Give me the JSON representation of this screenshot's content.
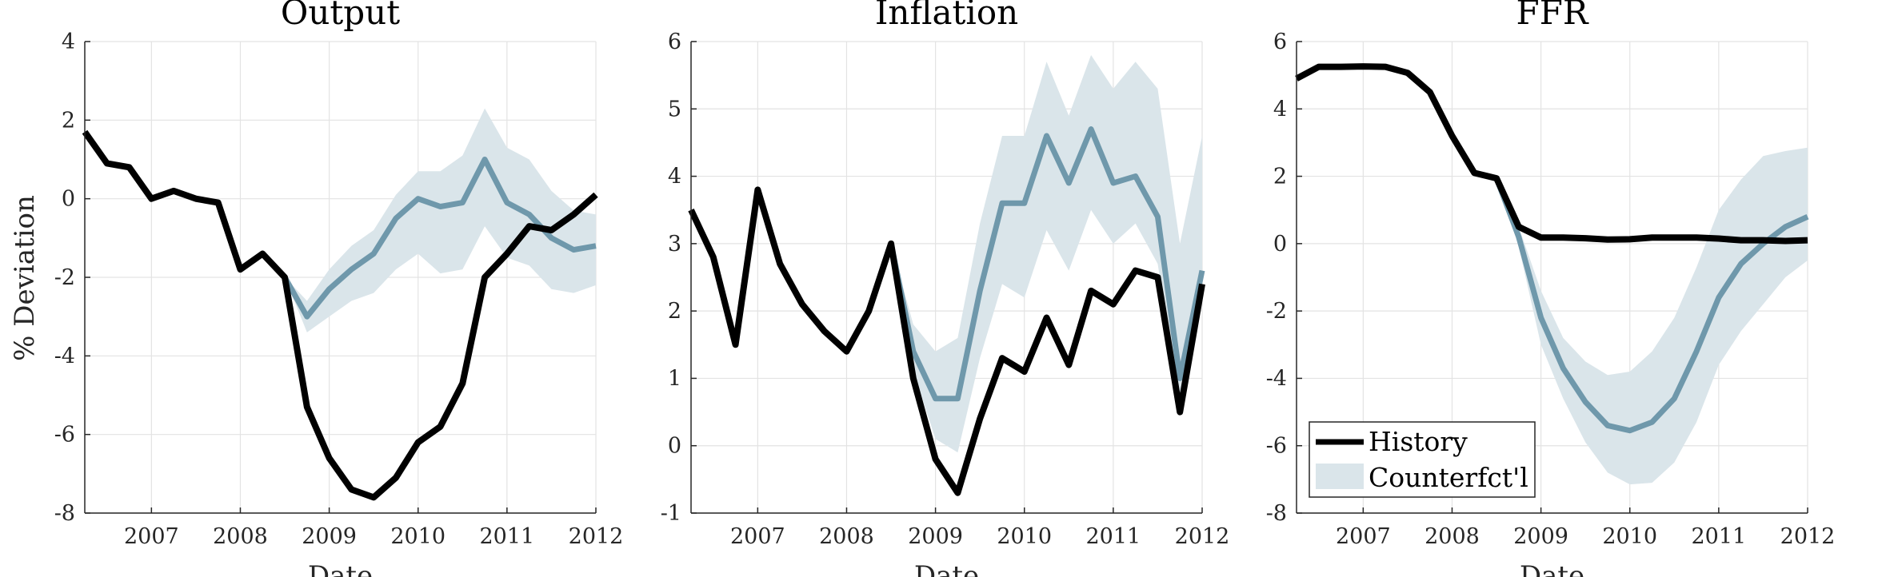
{
  "figure": {
    "ylabel": "% Deviation",
    "colors": {
      "history": "#000000",
      "counterfactual": "#6f98ab",
      "band": "#dae5ea",
      "grid": "#e3e3e3",
      "axis": "#262626"
    },
    "legend": {
      "entries": [
        "History",
        "Counterfct'l"
      ],
      "panel": "FFR",
      "location": "lower-left"
    }
  },
  "chart_data": [
    {
      "type": "line",
      "title": "Output",
      "xlabel": "Date",
      "ylabel": "% Deviation",
      "xlim": [
        2006.25,
        2012.0
      ],
      "ylim": [
        -8,
        4
      ],
      "xticks": [
        2007,
        2008,
        2009,
        2010,
        2011,
        2012
      ],
      "yticks": [
        -8,
        -6,
        -4,
        -2,
        0,
        2,
        4
      ],
      "grid": true,
      "series": [
        {
          "name": "History",
          "x": [
            2006.25,
            2006.5,
            2006.75,
            2007.0,
            2007.25,
            2007.5,
            2007.75,
            2008.0,
            2008.25,
            2008.5,
            2008.75,
            2009.0,
            2009.25,
            2009.5,
            2009.75,
            2010.0,
            2010.25,
            2010.5,
            2010.75,
            2011.0,
            2011.25,
            2011.5,
            2011.75,
            2012.0
          ],
          "values": [
            1.7,
            0.9,
            0.8,
            0.0,
            0.2,
            0.0,
            -0.1,
            -1.8,
            -1.4,
            -2.0,
            -5.3,
            -6.6,
            -7.4,
            -7.6,
            -7.1,
            -6.2,
            -5.8,
            -4.7,
            -2.0,
            -1.4,
            -0.7,
            -0.8,
            -0.4,
            0.1
          ]
        },
        {
          "name": "Counterfct'l",
          "x": [
            2008.5,
            2008.75,
            2009.0,
            2009.25,
            2009.5,
            2009.75,
            2010.0,
            2010.25,
            2010.5,
            2010.75,
            2011.0,
            2011.25,
            2011.5,
            2011.75,
            2012.0
          ],
          "values": [
            -2.0,
            -3.0,
            -2.3,
            -1.8,
            -1.4,
            -0.5,
            0.0,
            -0.2,
            -0.1,
            1.0,
            -0.1,
            -0.4,
            -1.0,
            -1.3,
            -1.2
          ],
          "band_upper": [
            -2.0,
            -2.6,
            -1.8,
            -1.2,
            -0.8,
            0.1,
            0.7,
            0.7,
            1.1,
            2.3,
            1.3,
            1.0,
            0.2,
            -0.3,
            -0.4
          ],
          "band_lower": [
            -2.0,
            -3.4,
            -3.0,
            -2.6,
            -2.4,
            -1.8,
            -1.4,
            -1.9,
            -1.8,
            -0.7,
            -1.5,
            -1.7,
            -2.3,
            -2.4,
            -2.2
          ]
        }
      ]
    },
    {
      "type": "line",
      "title": "Inflation",
      "xlabel": "Date",
      "xlim": [
        2006.25,
        2012.0
      ],
      "ylim": [
        -1,
        6
      ],
      "xticks": [
        2007,
        2008,
        2009,
        2010,
        2011,
        2012
      ],
      "yticks": [
        -1,
        0,
        1,
        2,
        3,
        4,
        5,
        6
      ],
      "grid": true,
      "series": [
        {
          "name": "History",
          "x": [
            2006.25,
            2006.5,
            2006.75,
            2007.0,
            2007.25,
            2007.5,
            2007.75,
            2008.0,
            2008.25,
            2008.5,
            2008.75,
            2009.0,
            2009.25,
            2009.5,
            2009.75,
            2010.0,
            2010.25,
            2010.5,
            2010.75,
            2011.0,
            2011.25,
            2011.5,
            2011.75,
            2012.0
          ],
          "values": [
            3.5,
            2.8,
            1.5,
            3.8,
            2.7,
            2.1,
            1.7,
            1.4,
            2.0,
            3.0,
            1.0,
            -0.2,
            -0.7,
            0.4,
            1.3,
            1.1,
            1.9,
            1.2,
            2.3,
            2.1,
            2.6,
            2.5,
            0.5,
            2.4
          ]
        },
        {
          "name": "Counterfct'l",
          "x": [
            2008.5,
            2008.75,
            2009.0,
            2009.25,
            2009.5,
            2009.75,
            2010.0,
            2010.25,
            2010.5,
            2010.75,
            2011.0,
            2011.25,
            2011.5,
            2011.75,
            2012.0
          ],
          "values": [
            3.0,
            1.4,
            0.7,
            0.7,
            2.3,
            3.6,
            3.6,
            4.6,
            3.9,
            4.7,
            3.9,
            4.0,
            3.4,
            1.0,
            2.6
          ],
          "band_upper": [
            3.0,
            1.8,
            1.4,
            1.6,
            3.3,
            4.6,
            4.6,
            5.7,
            4.9,
            5.8,
            5.3,
            5.7,
            5.3,
            3.0,
            4.6
          ],
          "band_lower": [
            3.0,
            1.1,
            0.1,
            -0.1,
            1.3,
            2.4,
            2.2,
            3.2,
            2.6,
            3.5,
            3.0,
            3.3,
            2.7,
            0.6,
            2.6
          ]
        }
      ]
    },
    {
      "type": "line",
      "title": "FFR",
      "xlabel": "Date",
      "xlim": [
        2006.25,
        2012.0
      ],
      "ylim": [
        -8,
        6
      ],
      "xticks": [
        2007,
        2008,
        2009,
        2010,
        2011,
        2012
      ],
      "yticks": [
        -8,
        -6,
        -4,
        -2,
        0,
        2,
        4,
        6
      ],
      "grid": true,
      "series": [
        {
          "name": "History",
          "x": [
            2006.25,
            2006.5,
            2006.75,
            2007.0,
            2007.25,
            2007.5,
            2007.75,
            2008.0,
            2008.25,
            2008.5,
            2008.75,
            2009.0,
            2009.25,
            2009.5,
            2009.75,
            2010.0,
            2010.25,
            2010.5,
            2010.75,
            2011.0,
            2011.25,
            2011.5,
            2011.75,
            2012.0
          ],
          "values": [
            4.9,
            5.25,
            5.25,
            5.26,
            5.25,
            5.07,
            4.5,
            3.2,
            2.1,
            1.94,
            0.5,
            0.18,
            0.18,
            0.16,
            0.12,
            0.13,
            0.18,
            0.18,
            0.18,
            0.15,
            0.1,
            0.1,
            0.08,
            0.1
          ]
        },
        {
          "name": "Counterfct'l",
          "x": [
            2008.5,
            2008.75,
            2009.0,
            2009.25,
            2009.5,
            2009.75,
            2010.0,
            2010.25,
            2010.5,
            2010.75,
            2011.0,
            2011.25,
            2011.5,
            2011.75,
            2012.0
          ],
          "values": [
            1.94,
            0.2,
            -2.2,
            -3.7,
            -4.7,
            -5.4,
            -5.55,
            -5.3,
            -4.6,
            -3.2,
            -1.6,
            -0.6,
            0.0,
            0.5,
            0.8
          ],
          "band_upper": [
            1.94,
            0.5,
            -1.4,
            -2.8,
            -3.5,
            -3.9,
            -3.8,
            -3.2,
            -2.2,
            -0.7,
            1.0,
            1.9,
            2.6,
            2.75,
            2.85
          ],
          "band_lower": [
            1.94,
            -0.1,
            -3.0,
            -4.6,
            -5.9,
            -6.8,
            -7.15,
            -7.1,
            -6.5,
            -5.3,
            -3.6,
            -2.6,
            -1.8,
            -1.0,
            -0.5
          ]
        }
      ]
    }
  ]
}
